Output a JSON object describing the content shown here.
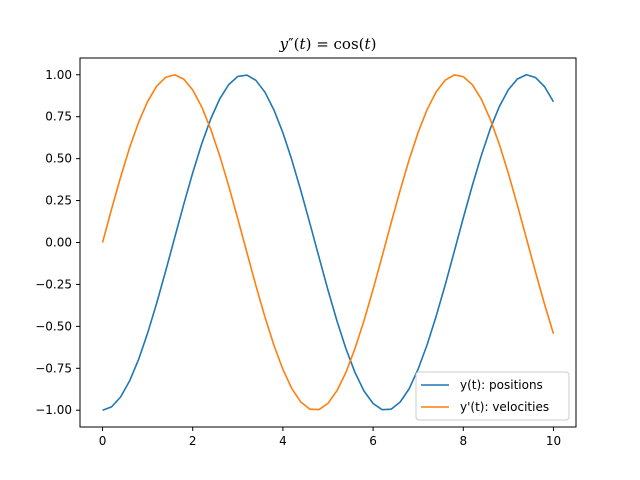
{
  "chart_data": {
    "type": "line",
    "title": {
      "lhs": "y",
      "prime": "″",
      "paren_open": "(",
      "var1": "t",
      "paren_close": ")",
      "equals": " = ",
      "func": "cos",
      "paren_open2": "(",
      "var2": "t",
      "paren_close2": ")"
    },
    "xlabel": "",
    "ylabel": "",
    "xlim": [
      -0.5,
      10.5
    ],
    "ylim": [
      -1.1,
      1.1
    ],
    "xticks": [
      0,
      2,
      4,
      6,
      8,
      10
    ],
    "xtick_labels": [
      "0",
      "2",
      "4",
      "6",
      "8",
      "10"
    ],
    "yticks": [
      -1.0,
      -0.75,
      -0.5,
      -0.25,
      0.0,
      0.25,
      0.5,
      0.75,
      1.0
    ],
    "ytick_labels": [
      "−1.00",
      "−0.75",
      "−0.50",
      "−0.25",
      "0.00",
      "0.25",
      "0.50",
      "0.75",
      "1.00"
    ],
    "grid": false,
    "legend_position": "lower-right",
    "x": [
      0.0,
      0.2,
      0.4,
      0.6,
      0.8,
      1.0,
      1.2,
      1.4,
      1.6,
      1.8,
      2.0,
      2.2,
      2.4,
      2.6,
      2.8,
      3.0,
      3.2,
      3.4,
      3.6,
      3.8,
      4.0,
      4.2,
      4.4,
      4.6,
      4.8,
      5.0,
      5.2,
      5.4,
      5.6,
      5.8,
      6.0,
      6.2,
      6.4,
      6.6,
      6.8,
      7.0,
      7.2,
      7.4,
      7.6,
      7.8,
      8.0,
      8.2,
      8.4,
      8.6,
      8.8,
      9.0,
      9.2,
      9.4,
      9.6,
      9.8,
      10.0
    ],
    "series": [
      {
        "name": "y(t): positions",
        "color": "#1f77b4",
        "values": [
          -1.0,
          -0.98,
          -0.921,
          -0.825,
          -0.697,
          -0.54,
          -0.362,
          -0.17,
          0.029,
          0.227,
          0.416,
          0.589,
          0.737,
          0.857,
          0.942,
          0.99,
          0.998,
          0.967,
          0.897,
          0.791,
          0.654,
          0.49,
          0.307,
          0.112,
          -0.087,
          -0.284,
          -0.469,
          -0.635,
          -0.776,
          -0.886,
          -0.96,
          -0.997,
          -0.994,
          -0.951,
          -0.872,
          -0.754,
          -0.608,
          -0.438,
          -0.252,
          -0.054,
          0.146,
          0.339,
          0.519,
          0.679,
          0.811,
          0.911,
          0.975,
          1.0,
          0.984,
          0.93,
          0.839
        ]
      },
      {
        "name": "y'(t): velocities",
        "color": "#ff7f0e",
        "values": [
          0.0,
          0.199,
          0.389,
          0.565,
          0.717,
          0.841,
          0.932,
          0.985,
          1.0,
          0.974,
          0.909,
          0.808,
          0.675,
          0.516,
          0.335,
          0.141,
          -0.058,
          -0.256,
          -0.443,
          -0.612,
          -0.757,
          -0.872,
          -0.952,
          -0.994,
          -0.996,
          -0.959,
          -0.883,
          -0.773,
          -0.631,
          -0.465,
          -0.279,
          -0.083,
          0.117,
          0.311,
          0.494,
          0.657,
          0.794,
          0.899,
          0.968,
          0.999,
          0.989,
          0.941,
          0.855,
          0.734,
          0.585,
          0.412,
          0.223,
          0.025,
          -0.174,
          -0.366,
          -0.544
        ]
      }
    ]
  }
}
